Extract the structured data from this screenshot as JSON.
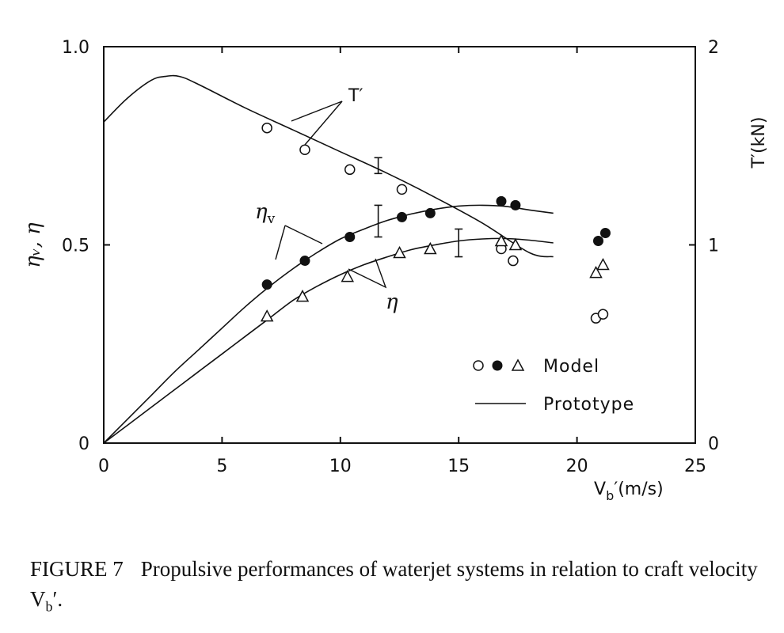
{
  "chart_data": {
    "type": "scatter",
    "x_axis": {
      "label_main": "V",
      "label_sub": "b",
      "label_rest": "′(m/s)",
      "range": [
        0,
        25
      ],
      "ticks": [
        0,
        5,
        10,
        15,
        20,
        25
      ],
      "tick_labels": [
        "0",
        "5",
        "10",
        "15",
        "20",
        "25"
      ]
    },
    "y_left": {
      "label": "ηᵥ, η",
      "range": [
        0,
        1
      ],
      "ticks": [
        0,
        0.5,
        1.0
      ],
      "tick_labels": [
        "0",
        "0.5",
        "1.0"
      ]
    },
    "y_right": {
      "label": "T′(kN)",
      "range": [
        0,
        2
      ],
      "ticks": [
        0,
        1,
        2
      ],
      "tick_labels": [
        "0",
        "1",
        "2"
      ]
    },
    "grid": false,
    "series": [
      {
        "name": "T′",
        "kind": "model",
        "marker": "open-circle",
        "axis": "right",
        "points": [
          [
            6.9,
            1.59
          ],
          [
            8.5,
            1.48
          ],
          [
            10.4,
            1.38
          ],
          [
            12.6,
            1.28
          ],
          [
            16.8,
            0.98
          ],
          [
            17.3,
            0.92
          ],
          [
            20.8,
            0.63
          ],
          [
            21.1,
            0.65
          ]
        ]
      },
      {
        "name": "ηᵥ",
        "kind": "model",
        "marker": "filled-circle",
        "axis": "left",
        "points": [
          [
            6.9,
            0.4
          ],
          [
            8.5,
            0.46
          ],
          [
            10.4,
            0.52
          ],
          [
            12.6,
            0.57
          ],
          [
            13.8,
            0.58
          ],
          [
            16.8,
            0.61
          ],
          [
            17.4,
            0.6
          ],
          [
            20.9,
            0.51
          ],
          [
            21.2,
            0.53
          ]
        ]
      },
      {
        "name": "η",
        "kind": "model",
        "marker": "open-triangle",
        "axis": "left",
        "points": [
          [
            6.9,
            0.32
          ],
          [
            8.4,
            0.37
          ],
          [
            10.3,
            0.42
          ],
          [
            12.5,
            0.48
          ],
          [
            13.8,
            0.49
          ],
          [
            16.8,
            0.51
          ],
          [
            17.4,
            0.5
          ],
          [
            20.8,
            0.43
          ],
          [
            21.1,
            0.45
          ]
        ]
      },
      {
        "name": "T′",
        "kind": "prototype",
        "axis": "right",
        "points": [
          [
            0,
            1.62
          ],
          [
            1,
            1.74
          ],
          [
            2,
            1.83
          ],
          [
            2.6,
            1.85
          ],
          [
            3.2,
            1.85
          ],
          [
            4,
            1.81
          ],
          [
            6,
            1.69
          ],
          [
            8,
            1.58
          ],
          [
            10,
            1.47
          ],
          [
            12,
            1.36
          ],
          [
            14,
            1.24
          ],
          [
            16,
            1.11
          ],
          [
            18,
            0.96
          ],
          [
            19,
            0.94
          ]
        ]
      },
      {
        "name": "ηᵥ",
        "kind": "prototype",
        "axis": "left",
        "points": [
          [
            0,
            0
          ],
          [
            1,
            0.06
          ],
          [
            2,
            0.12
          ],
          [
            3,
            0.18
          ],
          [
            4,
            0.235
          ],
          [
            5,
            0.29
          ],
          [
            6,
            0.345
          ],
          [
            7,
            0.395
          ],
          [
            8,
            0.44
          ],
          [
            9,
            0.48
          ],
          [
            10,
            0.515
          ],
          [
            11,
            0.54
          ],
          [
            12,
            0.562
          ],
          [
            13,
            0.578
          ],
          [
            14,
            0.59
          ],
          [
            15,
            0.598
          ],
          [
            16,
            0.6
          ],
          [
            17,
            0.597
          ],
          [
            18,
            0.588
          ],
          [
            19,
            0.58
          ]
        ]
      },
      {
        "name": "η",
        "kind": "prototype",
        "axis": "left",
        "points": [
          [
            0,
            0
          ],
          [
            1,
            0.045
          ],
          [
            2,
            0.09
          ],
          [
            3,
            0.135
          ],
          [
            4,
            0.18
          ],
          [
            5,
            0.225
          ],
          [
            6,
            0.27
          ],
          [
            7,
            0.315
          ],
          [
            8,
            0.36
          ],
          [
            9,
            0.395
          ],
          [
            10,
            0.425
          ],
          [
            11,
            0.45
          ],
          [
            12,
            0.47
          ],
          [
            13,
            0.488
          ],
          [
            14,
            0.5
          ],
          [
            15,
            0.51
          ],
          [
            16,
            0.515
          ],
          [
            17,
            0.516
          ],
          [
            18,
            0.512
          ],
          [
            19,
            0.505
          ]
        ]
      }
    ],
    "error_bars": [
      {
        "x": 11.6,
        "low": 0.68,
        "high": 0.72
      },
      {
        "x": 11.6,
        "low": 0.52,
        "high": 0.6
      },
      {
        "x": 15.0,
        "low": 0.47,
        "high": 0.54
      }
    ],
    "annotations": {
      "T_prime": "T′",
      "eta_v_main": "η",
      "eta_v_sub": "v",
      "eta": "η"
    },
    "legend": {
      "placement": "bottom-right",
      "model_label": "Model",
      "prototype_label": "Prototype"
    }
  },
  "caption": {
    "figure_label": "FIGURE 7",
    "text": "Propulsive performances of waterjet systems in relation to craft velocity V",
    "sub": "b",
    "tail": "′."
  }
}
